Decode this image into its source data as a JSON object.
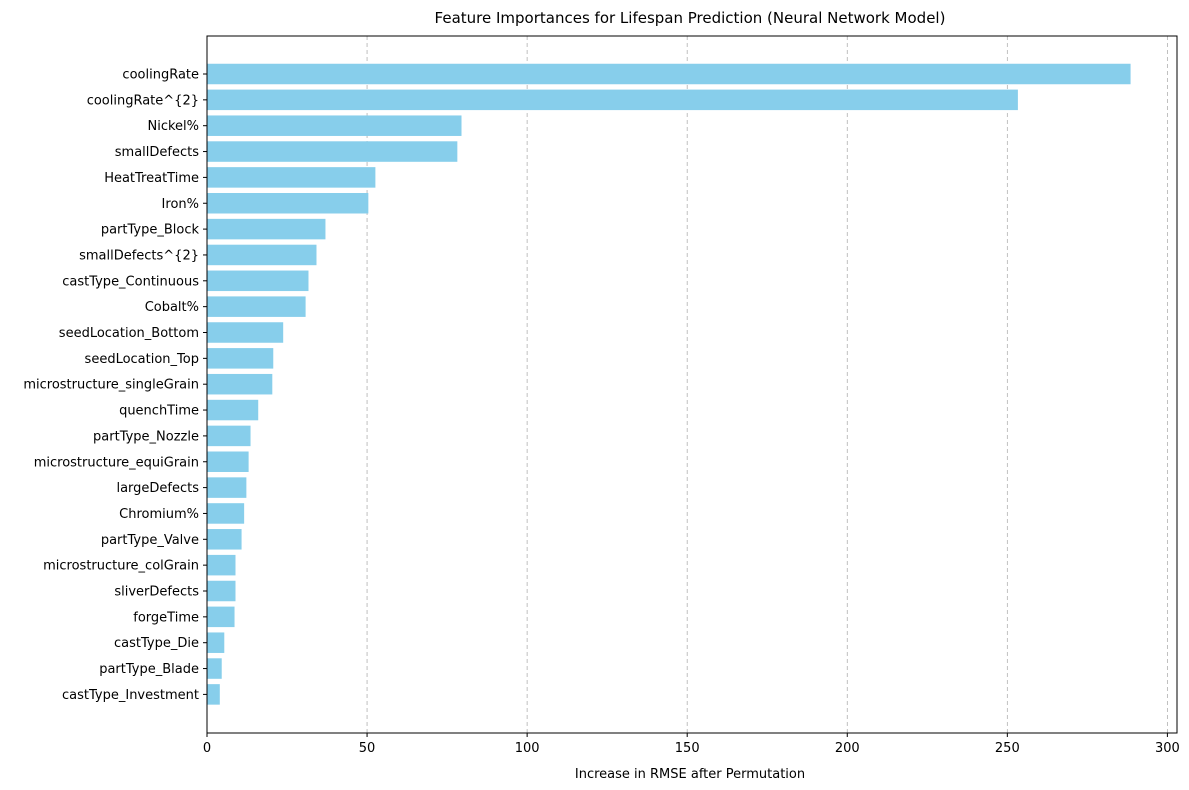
{
  "chart_data": {
    "type": "bar",
    "orientation": "horizontal",
    "title": "Feature Importances for Lifespan Prediction (Neural Network Model)",
    "xlabel": "Increase in RMSE after Permutation",
    "ylabel": "",
    "xlim": [
      0,
      303
    ],
    "xticks": [
      0,
      50,
      100,
      150,
      200,
      250,
      300
    ],
    "grid": "x-dashed",
    "bar_color": "#87ceeb",
    "categories": [
      "coolingRate",
      "coolingRate^{2}",
      "Nickel%",
      "smallDefects",
      "HeatTreatTime",
      "Iron%",
      "partType_Block",
      "smallDefects^{2}",
      "castType_Continuous",
      "Cobalt%",
      "seedLocation_Bottom",
      "seedLocation_Top",
      "microstructure_singleGrain",
      "quenchTime",
      "partType_Nozzle",
      "microstructure_equiGrain",
      "largeDefects",
      "Chromium%",
      "partType_Valve",
      "microstructure_colGrain",
      "sliverDefects",
      "forgeTime",
      "castType_Die",
      "partType_Blade",
      "castType_Investment"
    ],
    "values": [
      288.5,
      253.3,
      79.5,
      78.2,
      52.6,
      50.4,
      37.0,
      34.2,
      31.7,
      30.8,
      23.8,
      20.7,
      20.4,
      16.0,
      13.6,
      13.0,
      12.3,
      11.6,
      10.8,
      8.9,
      8.9,
      8.6,
      5.4,
      4.6,
      4.0
    ]
  }
}
